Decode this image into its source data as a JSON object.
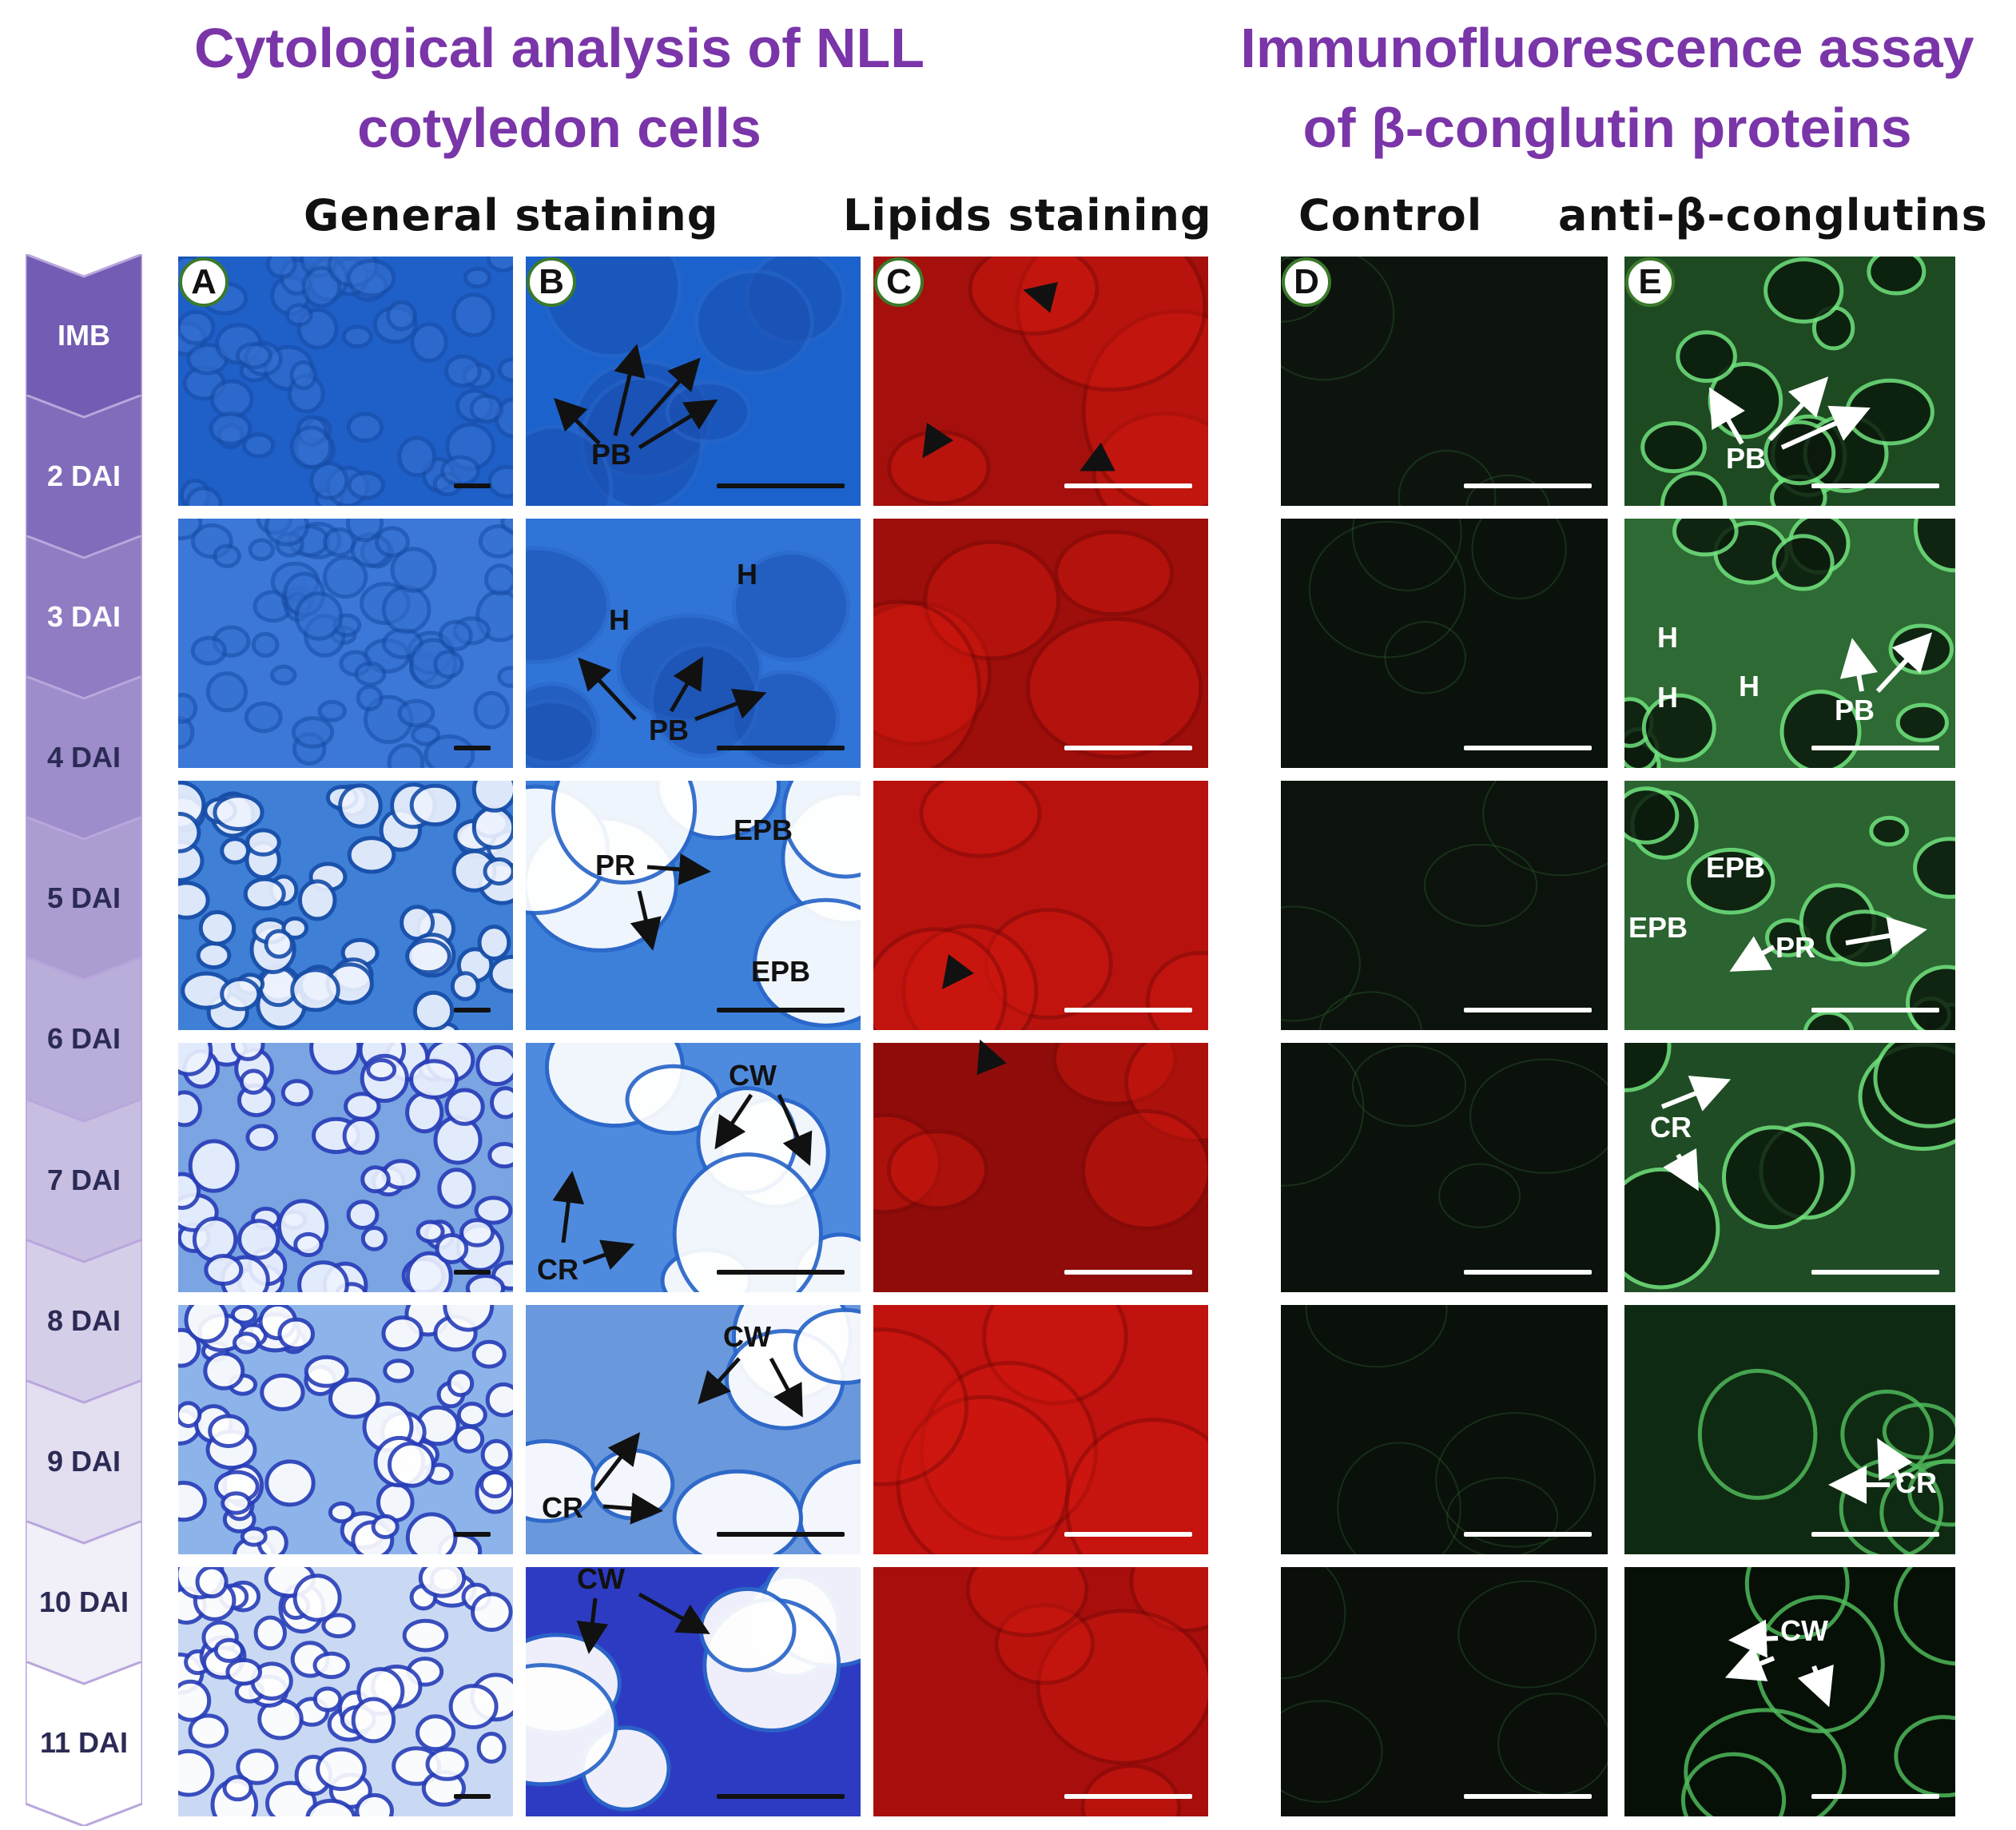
{
  "titles": {
    "left": [
      "Cytological analysis of NLL",
      "cotyledon cells"
    ],
    "right": [
      "Immunofluorescence assay",
      "of β-conglutin proteins"
    ]
  },
  "columns": {
    "general": "General staining",
    "lipids": "Lipids staining",
    "control": "Control",
    "anti": "anti-β-conglutins"
  },
  "panel_letters": [
    "A",
    "B",
    "C",
    "D",
    "E"
  ],
  "stages": [
    "IMB",
    "2 DAI",
    "3 DAI",
    "4 DAI",
    "5 DAI",
    "6 DAI",
    "7 DAI",
    "8 DAI",
    "9 DAI",
    "10 DAI",
    "11 DAI"
  ],
  "annotations": {
    "pb": "PB",
    "h": "H",
    "epb": "EPB",
    "pr": "PR",
    "cw": "CW",
    "cr": "CR"
  },
  "colors": {
    "title": "#7a35a8",
    "stage_dark": "#5a3fa6",
    "stage_light": "#ffffff",
    "stain_blue": "#2b6fd0",
    "lipid_red": "#c0120e",
    "fluor_green": "#5fdc6e",
    "fluor_dark": "#0a0f0a"
  }
}
